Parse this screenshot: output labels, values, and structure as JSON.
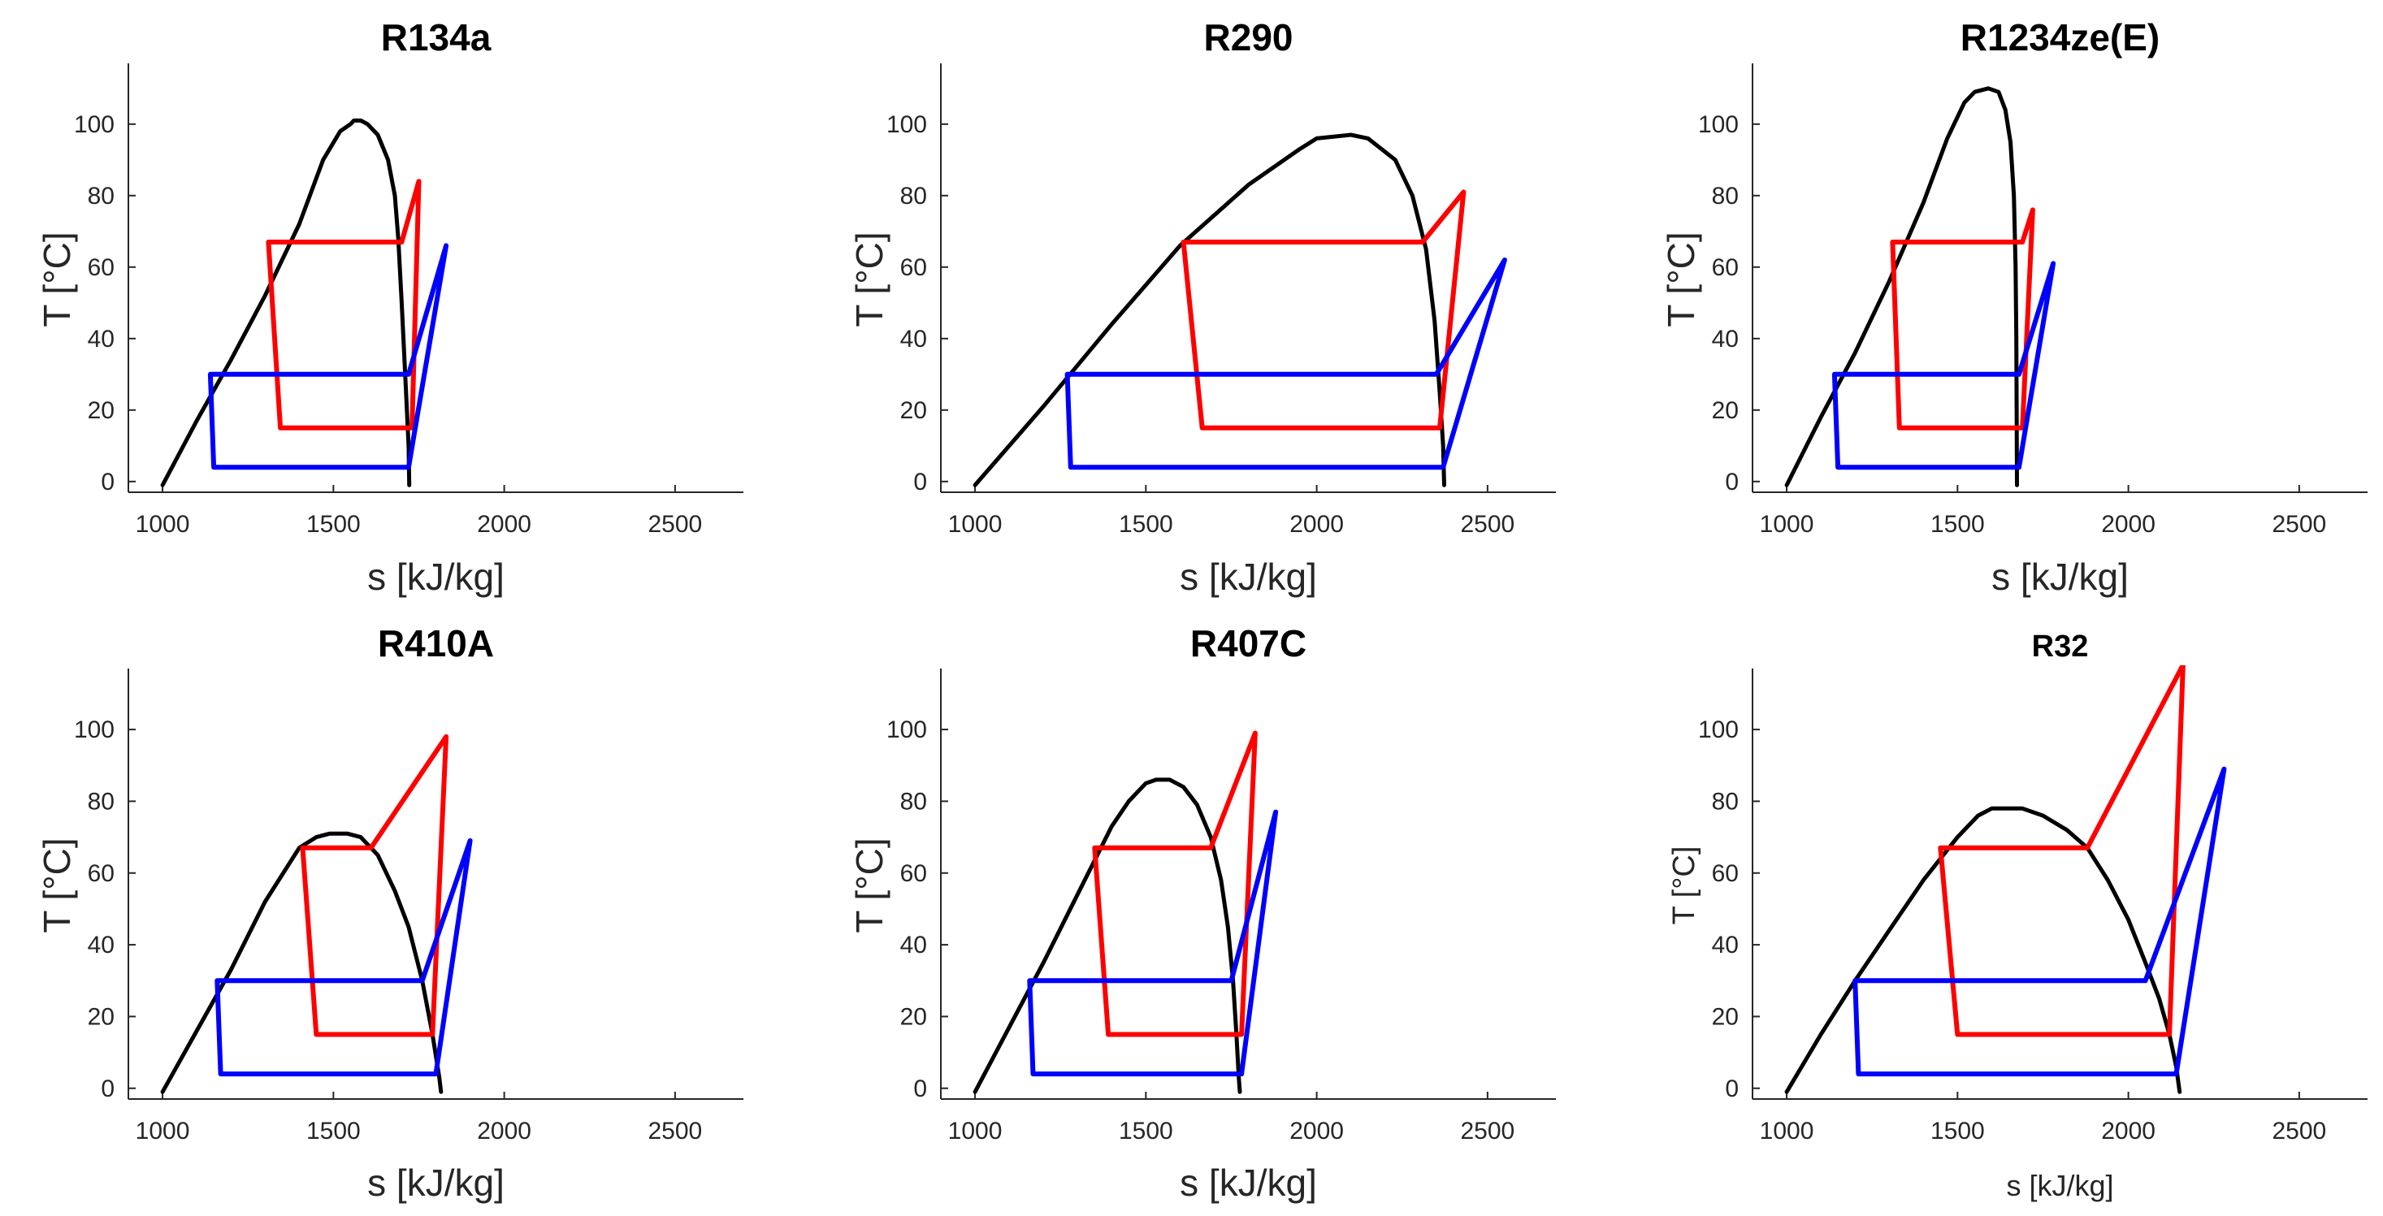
{
  "figure": {
    "panel_count": 6
  },
  "chart_data": [
    {
      "type": "line",
      "title": "R134a",
      "xlabel": "s [kJ/kg]",
      "ylabel": "T [°C]",
      "xlim": [
        900,
        2700
      ],
      "ylim": [
        -3,
        117
      ],
      "xticks": [
        1000,
        1500,
        2000,
        2500
      ],
      "yticks": [
        0,
        20,
        40,
        60,
        80,
        100
      ],
      "series": [
        {
          "name": "saturation dome",
          "color": "#000000",
          "points": [
            [
              1000,
              -1
            ],
            [
              1100,
              17
            ],
            [
              1200,
              34
            ],
            [
              1300,
              52
            ],
            [
              1400,
              72
            ],
            [
              1470,
              90
            ],
            [
              1520,
              98
            ],
            [
              1550,
              100
            ],
            [
              1560,
              101
            ],
            [
              1580,
              101
            ],
            [
              1600,
              100
            ],
            [
              1630,
              97
            ],
            [
              1660,
              90
            ],
            [
              1680,
              80
            ],
            [
              1690,
              68
            ],
            [
              1700,
              50
            ],
            [
              1710,
              30
            ],
            [
              1720,
              10
            ],
            [
              1722,
              -1
            ]
          ]
        },
        {
          "name": "red cycle",
          "color": "#ff0000",
          "points": [
            [
              1310,
              67
            ],
            [
              1700,
              67
            ],
            [
              1750,
              84
            ],
            [
              1730,
              15
            ],
            [
              1345,
              15
            ],
            [
              1310,
              67
            ]
          ]
        },
        {
          "name": "blue cycle",
          "color": "#0000ff",
          "points": [
            [
              1140,
              30
            ],
            [
              1720,
              30
            ],
            [
              1830,
              66
            ],
            [
              1720,
              4
            ],
            [
              1150,
              4
            ],
            [
              1140,
              30
            ]
          ]
        }
      ]
    },
    {
      "type": "line",
      "title": "R290",
      "xlabel": "s [kJ/kg]",
      "ylabel": "T [°C]",
      "xlim": [
        900,
        2700
      ],
      "ylim": [
        -3,
        117
      ],
      "xticks": [
        1000,
        1500,
        2000,
        2500
      ],
      "yticks": [
        0,
        20,
        40,
        60,
        80,
        100
      ],
      "series": [
        {
          "name": "saturation dome",
          "color": "#000000",
          "points": [
            [
              1000,
              -1
            ],
            [
              1200,
              21
            ],
            [
              1400,
              44
            ],
            [
              1600,
              66
            ],
            [
              1800,
              83
            ],
            [
              1950,
              93
            ],
            [
              2000,
              96
            ],
            [
              2100,
              97
            ],
            [
              2150,
              96
            ],
            [
              2230,
              90
            ],
            [
              2280,
              80
            ],
            [
              2320,
              65
            ],
            [
              2345,
              45
            ],
            [
              2360,
              25
            ],
            [
              2370,
              10
            ],
            [
              2373,
              -1
            ]
          ]
        },
        {
          "name": "red cycle",
          "color": "#ff0000",
          "points": [
            [
              1610,
              67
            ],
            [
              2310,
              67
            ],
            [
              2430,
              81
            ],
            [
              2360,
              15
            ],
            [
              1665,
              15
            ],
            [
              1610,
              67
            ]
          ]
        },
        {
          "name": "blue cycle",
          "color": "#0000ff",
          "points": [
            [
              1270,
              30
            ],
            [
              2350,
              30
            ],
            [
              2550,
              62
            ],
            [
              2370,
              4
            ],
            [
              1280,
              4
            ],
            [
              1270,
              30
            ]
          ]
        }
      ]
    },
    {
      "type": "line",
      "title": "R1234ze(E)",
      "xlabel": "s [kJ/kg]",
      "ylabel": "T [°C]",
      "xlim": [
        900,
        2700
      ],
      "ylim": [
        -3,
        117
      ],
      "xticks": [
        1000,
        1500,
        2000,
        2500
      ],
      "yticks": [
        0,
        20,
        40,
        60,
        80,
        100
      ],
      "series": [
        {
          "name": "saturation dome",
          "color": "#000000",
          "points": [
            [
              1000,
              -1
            ],
            [
              1100,
              18
            ],
            [
              1200,
              36
            ],
            [
              1300,
              56
            ],
            [
              1400,
              78
            ],
            [
              1470,
              96
            ],
            [
              1520,
              106
            ],
            [
              1550,
              109
            ],
            [
              1590,
              110
            ],
            [
              1620,
              109
            ],
            [
              1640,
              104
            ],
            [
              1655,
              95
            ],
            [
              1665,
              80
            ],
            [
              1670,
              60
            ],
            [
              1672,
              40
            ],
            [
              1673,
              20
            ],
            [
              1674,
              -1
            ]
          ]
        },
        {
          "name": "red cycle",
          "color": "#ff0000",
          "points": [
            [
              1310,
              67
            ],
            [
              1690,
              67
            ],
            [
              1720,
              76
            ],
            [
              1690,
              15
            ],
            [
              1330,
              15
            ],
            [
              1310,
              67
            ]
          ]
        },
        {
          "name": "blue cycle",
          "color": "#0000ff",
          "points": [
            [
              1140,
              30
            ],
            [
              1680,
              30
            ],
            [
              1780,
              61
            ],
            [
              1680,
              4
            ],
            [
              1150,
              4
            ],
            [
              1140,
              30
            ]
          ]
        }
      ]
    },
    {
      "type": "line",
      "title": "R410A",
      "xlabel": "s [kJ/kg]",
      "ylabel": "T [°C]",
      "xlim": [
        900,
        2700
      ],
      "ylim": [
        -3,
        117
      ],
      "xticks": [
        1000,
        1500,
        2000,
        2500
      ],
      "yticks": [
        0,
        20,
        40,
        60,
        80,
        100
      ],
      "series": [
        {
          "name": "saturation dome",
          "color": "#000000",
          "points": [
            [
              1000,
              -1
            ],
            [
              1100,
              16
            ],
            [
              1200,
              33
            ],
            [
              1300,
              52
            ],
            [
              1400,
              67
            ],
            [
              1450,
              70
            ],
            [
              1490,
              71
            ],
            [
              1540,
              71
            ],
            [
              1580,
              70
            ],
            [
              1630,
              65
            ],
            [
              1680,
              55
            ],
            [
              1720,
              45
            ],
            [
              1760,
              30
            ],
            [
              1790,
              15
            ],
            [
              1810,
              3
            ],
            [
              1815,
              -1
            ]
          ]
        },
        {
          "name": "red cycle",
          "color": "#ff0000",
          "points": [
            [
              1410,
              67
            ],
            [
              1610,
              67
            ],
            [
              1830,
              98
            ],
            [
              1790,
              15
            ],
            [
              1450,
              15
            ],
            [
              1410,
              67
            ]
          ]
        },
        {
          "name": "blue cycle",
          "color": "#0000ff",
          "points": [
            [
              1160,
              30
            ],
            [
              1760,
              30
            ],
            [
              1900,
              69
            ],
            [
              1800,
              4
            ],
            [
              1170,
              4
            ],
            [
              1160,
              30
            ]
          ]
        }
      ]
    },
    {
      "type": "line",
      "title": "R407C",
      "xlabel": "s [kJ/kg]",
      "ylabel": "T [°C]",
      "xlim": [
        900,
        2700
      ],
      "ylim": [
        -3,
        117
      ],
      "xticks": [
        1000,
        1500,
        2000,
        2500
      ],
      "yticks": [
        0,
        20,
        40,
        60,
        80,
        100
      ],
      "series": [
        {
          "name": "saturation dome",
          "color": "#000000",
          "points": [
            [
              1000,
              -1
            ],
            [
              1100,
              17
            ],
            [
              1200,
              35
            ],
            [
              1300,
              54
            ],
            [
              1400,
              73
            ],
            [
              1450,
              80
            ],
            [
              1500,
              85
            ],
            [
              1530,
              86
            ],
            [
              1570,
              86
            ],
            [
              1610,
              84
            ],
            [
              1650,
              79
            ],
            [
              1690,
              70
            ],
            [
              1720,
              58
            ],
            [
              1740,
              45
            ],
            [
              1755,
              30
            ],
            [
              1765,
              15
            ],
            [
              1772,
              3
            ],
            [
              1775,
              -1
            ]
          ]
        },
        {
          "name": "red cycle",
          "color": "#ff0000",
          "points": [
            [
              1350,
              67
            ],
            [
              1690,
              67
            ],
            [
              1820,
              99
            ],
            [
              1780,
              15
            ],
            [
              1390,
              15
            ],
            [
              1350,
              67
            ]
          ]
        },
        {
          "name": "blue cycle",
          "color": "#0000ff",
          "points": [
            [
              1160,
              30
            ],
            [
              1750,
              30
            ],
            [
              1880,
              77
            ],
            [
              1780,
              4
            ],
            [
              1170,
              4
            ],
            [
              1160,
              30
            ]
          ]
        }
      ]
    },
    {
      "type": "line",
      "title": "R32",
      "xlabel": "s [kJ/kg]",
      "ylabel": "T [°C]",
      "xlim": [
        900,
        2700
      ],
      "ylim": [
        -3,
        117
      ],
      "xticks": [
        1000,
        1500,
        2000,
        2500
      ],
      "yticks": [
        0,
        20,
        40,
        60,
        80,
        100
      ],
      "series": [
        {
          "name": "saturation dome",
          "color": "#000000",
          "points": [
            [
              1000,
              -1
            ],
            [
              1100,
              15
            ],
            [
              1200,
              30
            ],
            [
              1300,
              44
            ],
            [
              1400,
              58
            ],
            [
              1500,
              70
            ],
            [
              1560,
              76
            ],
            [
              1600,
              78
            ],
            [
              1690,
              78
            ],
            [
              1750,
              76
            ],
            [
              1820,
              72
            ],
            [
              1880,
              67
            ],
            [
              1940,
              58
            ],
            [
              2000,
              47
            ],
            [
              2050,
              35
            ],
            [
              2090,
              25
            ],
            [
              2120,
              15
            ],
            [
              2140,
              6
            ],
            [
              2150,
              -1
            ]
          ]
        },
        {
          "name": "red cycle",
          "color": "#ff0000",
          "points": [
            [
              1450,
              67
            ],
            [
              1880,
              67
            ],
            [
              2160,
              118
            ],
            [
              2120,
              15
            ],
            [
              1500,
              15
            ],
            [
              1450,
              67
            ]
          ]
        },
        {
          "name": "blue cycle",
          "color": "#0000ff",
          "points": [
            [
              1200,
              30
            ],
            [
              2050,
              30
            ],
            [
              2280,
              89
            ],
            [
              2140,
              4
            ],
            [
              1210,
              4
            ],
            [
              1200,
              30
            ]
          ]
        }
      ]
    }
  ]
}
